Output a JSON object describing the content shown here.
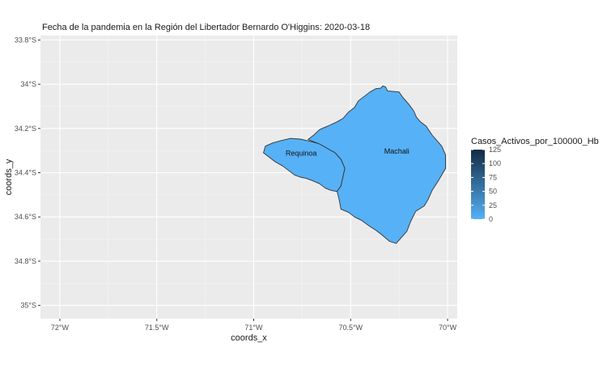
{
  "title": "Fecha de la pandemia en la Región del Libertador Bernardo O'Higgins: 2020-03-18",
  "chart_data": {
    "type": "choropleth",
    "title": "Fecha de la pandemia en la Región del Libertador Bernardo O'Higgins: 2020-03-18",
    "xlabel": "coords_x",
    "ylabel": "coords_y",
    "xlim": [
      -72.1,
      -69.95
    ],
    "ylim": [
      -35.06,
      -33.78
    ],
    "x_ticks": [
      {
        "value": -72.0,
        "label": "72°W"
      },
      {
        "value": -71.5,
        "label": "71.5°W"
      },
      {
        "value": -71.0,
        "label": "71°W"
      },
      {
        "value": -70.5,
        "label": "70.5°W"
      },
      {
        "value": -70.0,
        "label": "70°W"
      }
    ],
    "y_ticks": [
      {
        "value": -33.8,
        "label": "33.8°S"
      },
      {
        "value": -34.0,
        "label": "34°S"
      },
      {
        "value": -34.2,
        "label": "34.2°S"
      },
      {
        "value": -34.4,
        "label": "34.4°S"
      },
      {
        "value": -34.6,
        "label": "34.6°S"
      },
      {
        "value": -34.8,
        "label": "34.8°S"
      },
      {
        "value": -35.0,
        "label": "35°S"
      }
    ],
    "grid": true,
    "legend": {
      "title": "Casos_Activos_por_100000_Hb",
      "position": "right",
      "range": [
        0,
        125
      ],
      "ticks": [
        125,
        100,
        75,
        50,
        25,
        0
      ],
      "color_low": "#56B1F7",
      "color_high": "#132B43"
    },
    "regions": [
      {
        "name": "Requinoa",
        "value": 0,
        "label_lon": -70.755,
        "label_lat": -34.312,
        "polygon": [
          [
            -70.86,
            -34.255
          ],
          [
            -70.81,
            -34.245
          ],
          [
            -70.76,
            -34.248
          ],
          [
            -70.71,
            -34.258
          ],
          [
            -70.66,
            -34.27
          ],
          [
            -70.62,
            -34.29
          ],
          [
            -70.58,
            -34.31
          ],
          [
            -70.55,
            -34.34
          ],
          [
            -70.53,
            -34.38
          ],
          [
            -70.54,
            -34.42
          ],
          [
            -70.55,
            -34.46
          ],
          [
            -70.57,
            -34.485
          ],
          [
            -70.6,
            -34.48
          ],
          [
            -70.63,
            -34.47
          ],
          [
            -70.66,
            -34.45
          ],
          [
            -70.7,
            -34.435
          ],
          [
            -70.73,
            -34.425
          ],
          [
            -70.76,
            -34.42
          ],
          [
            -70.79,
            -34.41
          ],
          [
            -70.82,
            -34.39
          ],
          [
            -70.85,
            -34.37
          ],
          [
            -70.89,
            -34.35
          ],
          [
            -70.92,
            -34.33
          ],
          [
            -70.95,
            -34.31
          ],
          [
            -70.94,
            -34.28
          ],
          [
            -70.9,
            -34.265
          ]
        ]
      },
      {
        "name": "Machali",
        "value": 0,
        "label_lon": -70.262,
        "label_lat": -34.303,
        "polygon": [
          [
            -70.72,
            -34.25
          ],
          [
            -70.69,
            -34.23
          ],
          [
            -70.66,
            -34.205
          ],
          [
            -70.62,
            -34.19
          ],
          [
            -70.575,
            -34.172
          ],
          [
            -70.54,
            -34.155
          ],
          [
            -70.51,
            -34.125
          ],
          [
            -70.48,
            -34.105
          ],
          [
            -70.46,
            -34.075
          ],
          [
            -70.43,
            -34.055
          ],
          [
            -70.4,
            -34.035
          ],
          [
            -70.37,
            -34.02
          ],
          [
            -70.345,
            -34.018
          ],
          [
            -70.335,
            -34.008
          ],
          [
            -70.32,
            -34.012
          ],
          [
            -70.31,
            -34.03
          ],
          [
            -70.285,
            -34.032
          ],
          [
            -70.25,
            -34.035
          ],
          [
            -70.23,
            -34.06
          ],
          [
            -70.2,
            -34.09
          ],
          [
            -70.175,
            -34.12
          ],
          [
            -70.16,
            -34.15
          ],
          [
            -70.14,
            -34.17
          ],
          [
            -70.11,
            -34.19
          ],
          [
            -70.08,
            -34.23
          ],
          [
            -70.03,
            -34.28
          ],
          [
            -70.01,
            -34.32
          ],
          [
            -70.01,
            -34.38
          ],
          [
            -70.05,
            -34.44
          ],
          [
            -70.08,
            -34.48
          ],
          [
            -70.1,
            -34.52
          ],
          [
            -70.12,
            -34.55
          ],
          [
            -70.165,
            -34.575
          ],
          [
            -70.19,
            -34.62
          ],
          [
            -70.21,
            -34.665
          ],
          [
            -70.245,
            -34.7
          ],
          [
            -70.265,
            -34.72
          ],
          [
            -70.3,
            -34.71
          ],
          [
            -70.34,
            -34.68
          ],
          [
            -70.37,
            -34.66
          ],
          [
            -70.405,
            -34.64
          ],
          [
            -70.445,
            -34.615
          ],
          [
            -70.48,
            -34.6
          ],
          [
            -70.51,
            -34.58
          ],
          [
            -70.55,
            -34.565
          ],
          [
            -70.56,
            -34.52
          ],
          [
            -70.57,
            -34.485
          ],
          [
            -70.55,
            -34.46
          ],
          [
            -70.54,
            -34.42
          ],
          [
            -70.53,
            -34.38
          ],
          [
            -70.55,
            -34.34
          ],
          [
            -70.58,
            -34.31
          ],
          [
            -70.62,
            -34.29
          ],
          [
            -70.66,
            -34.27
          ]
        ]
      }
    ]
  }
}
